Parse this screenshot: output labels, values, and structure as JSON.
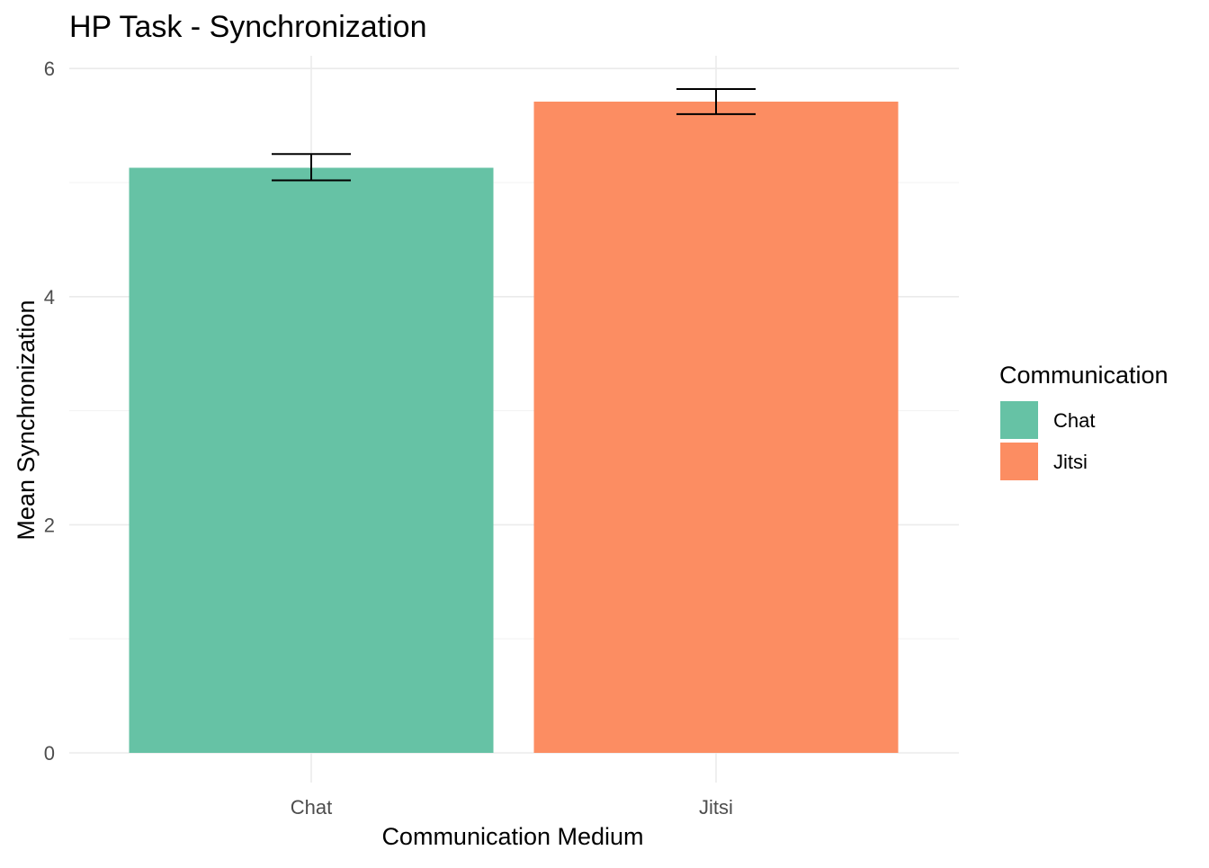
{
  "chart_data": {
    "type": "bar",
    "title": "HP Task - Synchronization",
    "xlabel": "Communication Medium",
    "ylabel": "Mean Synchronization",
    "categories": [
      "Chat",
      "Jitsi"
    ],
    "values": [
      5.13,
      5.71
    ],
    "error_bars": [
      {
        "lower": 5.02,
        "upper": 5.25
      },
      {
        "lower": 5.6,
        "upper": 5.82
      }
    ],
    "colors": [
      "#66c2a5",
      "#fc8d62"
    ],
    "ylim": [
      0,
      6.1
    ],
    "yticks": [
      0,
      2,
      4,
      6
    ],
    "ytick_labels": [
      "0",
      "2",
      "4",
      "6"
    ],
    "grid": true,
    "legend": {
      "title": "Communication",
      "position": "right",
      "entries": [
        "Chat",
        "Jitsi"
      ]
    }
  }
}
